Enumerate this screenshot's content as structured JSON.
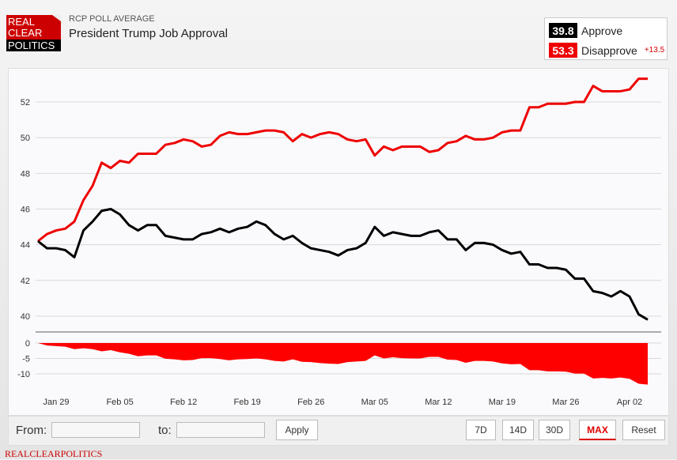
{
  "header": {
    "logo_text": "REAL CLEAR POLITICS",
    "kicker": "RCP POLL AVERAGE",
    "title": "President Trump Job Approval"
  },
  "legend": {
    "approve_value": "39.8",
    "approve_label": "Approve",
    "disapprove_value": "53.3",
    "disapprove_label": "Disapprove",
    "spread": "+13.5"
  },
  "colors": {
    "approve": "#000000",
    "disapprove": "#ee0000",
    "spread_fill": "#ff0000"
  },
  "chart_data": {
    "type": "line",
    "title": "President Trump Job Approval",
    "x_start": "Jan 27",
    "x_ticks": [
      {
        "label": "Jan 29",
        "index": 2
      },
      {
        "label": "Feb 05",
        "index": 9
      },
      {
        "label": "Feb 12",
        "index": 16
      },
      {
        "label": "Feb 19",
        "index": 23
      },
      {
        "label": "Feb 26",
        "index": 30
      },
      {
        "label": "Mar 05",
        "index": 37
      },
      {
        "label": "Mar 12",
        "index": 44
      },
      {
        "label": "Mar 19",
        "index": 51
      },
      {
        "label": "Mar 26",
        "index": 58
      },
      {
        "label": "Apr 02",
        "index": 65
      }
    ],
    "y_ticks": [
      "52",
      "50",
      "48",
      "46",
      "44",
      "42",
      "40"
    ],
    "ylim": [
      39.1,
      53.9
    ],
    "series": [
      {
        "name": "Approve",
        "values": [
          44.2,
          43.8,
          43.8,
          43.7,
          43.3,
          44.8,
          45.3,
          45.9,
          46.0,
          45.7,
          45.1,
          44.8,
          45.1,
          45.1,
          44.5,
          44.4,
          44.3,
          44.3,
          44.6,
          44.7,
          44.9,
          44.7,
          44.9,
          45.0,
          45.3,
          45.1,
          44.6,
          44.3,
          44.5,
          44.1,
          43.8,
          43.7,
          43.6,
          43.4,
          43.7,
          43.8,
          44.1,
          45.0,
          44.5,
          44.7,
          44.6,
          44.5,
          44.5,
          44.7,
          44.8,
          44.3,
          44.3,
          43.7,
          44.1,
          44.1,
          44.0,
          43.7,
          43.5,
          43.6,
          42.9,
          42.9,
          42.7,
          42.7,
          42.6,
          42.1,
          42.1,
          41.4,
          41.3,
          41.1,
          41.4,
          41.1,
          40.1,
          39.8
        ]
      },
      {
        "name": "Disapprove",
        "values": [
          44.2,
          44.6,
          44.8,
          44.9,
          45.3,
          46.5,
          47.3,
          48.6,
          48.3,
          48.7,
          48.6,
          49.1,
          49.1,
          49.1,
          49.6,
          49.7,
          49.9,
          49.8,
          49.5,
          49.6,
          50.1,
          50.3,
          50.2,
          50.2,
          50.3,
          50.4,
          50.4,
          50.3,
          49.8,
          50.2,
          50.0,
          50.2,
          50.3,
          50.2,
          49.9,
          49.8,
          49.9,
          49.0,
          49.5,
          49.3,
          49.5,
          49.5,
          49.5,
          49.2,
          49.3,
          49.7,
          49.8,
          50.1,
          49.9,
          49.9,
          50.0,
          50.3,
          50.4,
          50.4,
          51.7,
          51.7,
          51.9,
          51.9,
          51.9,
          52.0,
          52.0,
          52.9,
          52.6,
          52.6,
          52.6,
          52.7,
          53.3,
          53.3
        ]
      }
    ],
    "spread": {
      "name": "Spread (Approve - Disapprove)",
      "y_ticks": [
        "0",
        "-5",
        "-10"
      ],
      "ylim": [
        -14,
        0
      ]
    }
  },
  "controls": {
    "from_label": "From:",
    "to_label": "to:",
    "from_value": "",
    "to_value": "",
    "apply": "Apply",
    "ranges": [
      "7D",
      "14D",
      "30D",
      "MAX",
      "Reset"
    ],
    "active_range": "MAX"
  },
  "footer": "REALCLEARPOLITICS"
}
